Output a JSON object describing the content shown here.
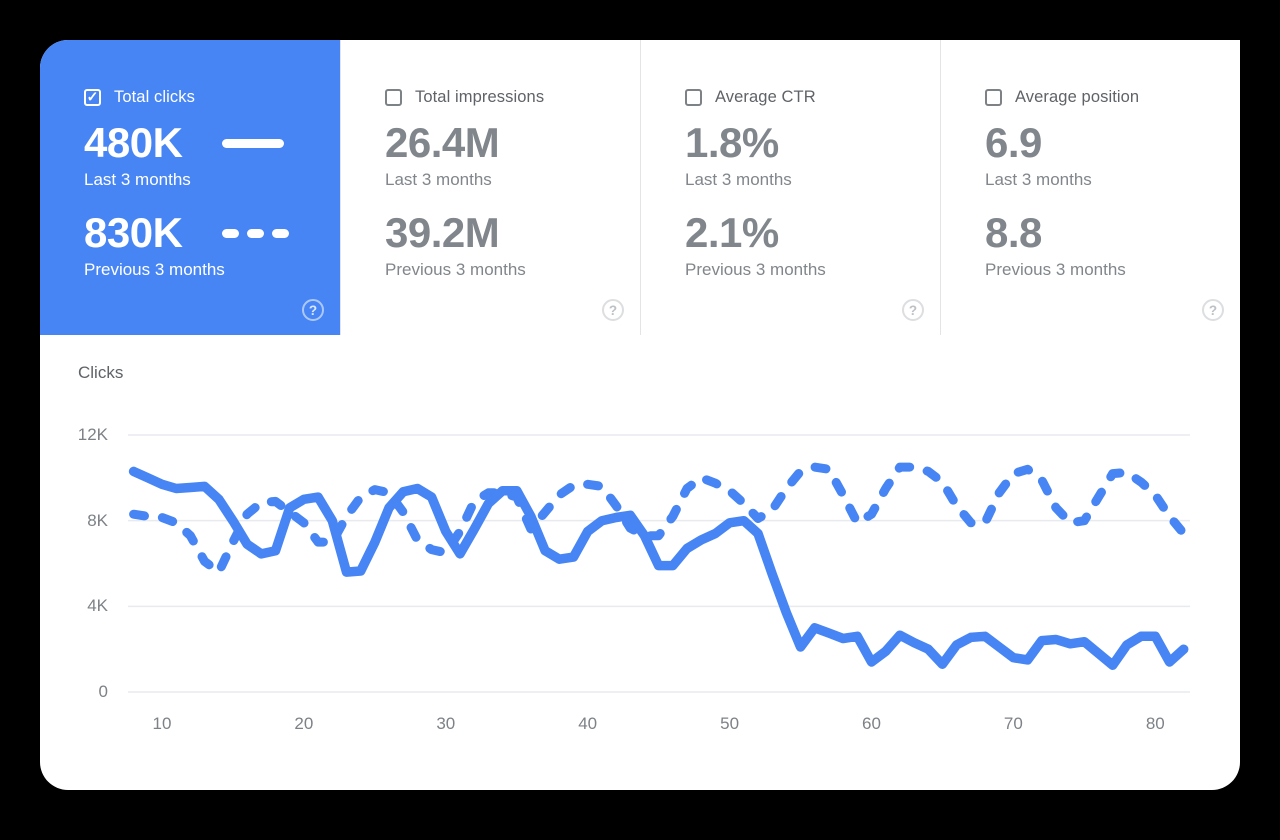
{
  "icons": {
    "check": "✓",
    "help": "?"
  },
  "colors": {
    "accent_blue": "#4785f4",
    "panel_background": "#ffffff",
    "page_background": "#000000",
    "gridline": "#e9eaee",
    "muted_text": "#80868b"
  },
  "metric_cards": [
    {
      "label": "Total clicks",
      "checked": true,
      "selected": true,
      "primary_value": "480K",
      "primary_caption": "Last 3 months",
      "secondary_value": "830K",
      "secondary_caption": "Previous 3 months"
    },
    {
      "label": "Total impressions",
      "checked": false,
      "selected": false,
      "primary_value": "26.4M",
      "primary_caption": "Last 3 months",
      "secondary_value": "39.2M",
      "secondary_caption": "Previous 3 months"
    },
    {
      "label": "Average CTR",
      "checked": false,
      "selected": false,
      "primary_value": "1.8%",
      "primary_caption": "Last 3 months",
      "secondary_value": "2.1%",
      "secondary_caption": "Previous 3 months"
    },
    {
      "label": "Average position",
      "checked": false,
      "selected": false,
      "primary_value": "6.9",
      "primary_caption": "Last 3 months",
      "secondary_value": "8.8",
      "secondary_caption": "Previous 3 months"
    }
  ],
  "chart_data": {
    "type": "line",
    "axis_title": "Clicks",
    "y_unit": "thousands of clicks",
    "ylim_k": [
      0,
      12
    ],
    "grid": true,
    "legend_position": "inside selected metric card (solid = last 3 months, dashed = previous 3 months)",
    "y_ticks_k": [
      12,
      8,
      4,
      0
    ],
    "y_tick_labels": [
      "12K",
      "8K",
      "4K",
      "0"
    ],
    "x_ticks": [
      10,
      20,
      30,
      40,
      50,
      60,
      70,
      80
    ],
    "x_days": {
      "from": 8,
      "to": 82
    },
    "series": [
      {
        "name": "Last 3 months",
        "style": "solid",
        "color": "#4785f4",
        "values_k": [
          10.3,
          10.0,
          9.7,
          9.5,
          9.55,
          9.6,
          9.0,
          8.0,
          6.9,
          6.45,
          6.6,
          8.6,
          9.0,
          9.1,
          8.0,
          5.6,
          5.65,
          7.0,
          8.6,
          9.35,
          9.5,
          9.1,
          7.5,
          6.45,
          7.6,
          8.8,
          9.4,
          9.4,
          8.2,
          6.6,
          6.2,
          6.3,
          7.5,
          8.0,
          8.15,
          8.25,
          7.3,
          5.9,
          5.9,
          6.7,
          7.1,
          7.4,
          7.9,
          8.0,
          7.4,
          5.5,
          3.7,
          2.1,
          3.0,
          2.75,
          2.5,
          2.6,
          1.4,
          1.9,
          2.65,
          2.3,
          2.0,
          1.3,
          2.2,
          2.55,
          2.6,
          2.1,
          1.6,
          1.5,
          2.4,
          2.45,
          2.25,
          2.35,
          1.8,
          1.25,
          2.2,
          2.6,
          2.6,
          1.4,
          2.0
        ]
      },
      {
        "name": "Previous 3 months",
        "style": "dashed",
        "color": "#4785f4",
        "values_k": [
          8.3,
          8.2,
          8.15,
          7.9,
          7.3,
          6.1,
          5.6,
          7.0,
          8.3,
          8.85,
          8.9,
          8.4,
          7.9,
          7.0,
          7.0,
          8.2,
          9.1,
          9.45,
          9.3,
          8.4,
          7.1,
          6.65,
          6.5,
          7.5,
          8.9,
          9.3,
          9.3,
          9.1,
          7.6,
          8.4,
          9.2,
          9.65,
          9.7,
          9.6,
          8.7,
          7.65,
          7.3,
          7.3,
          8.2,
          9.5,
          10.0,
          9.75,
          9.4,
          8.8,
          8.1,
          8.5,
          9.5,
          10.3,
          10.5,
          10.4,
          9.2,
          7.9,
          8.3,
          9.5,
          10.5,
          10.5,
          10.3,
          9.8,
          8.7,
          7.9,
          7.9,
          9.3,
          10.2,
          10.4,
          9.9,
          8.6,
          7.9,
          8.0,
          9.1,
          10.2,
          10.25,
          9.8,
          9.2,
          8.2,
          7.4
        ]
      }
    ]
  }
}
